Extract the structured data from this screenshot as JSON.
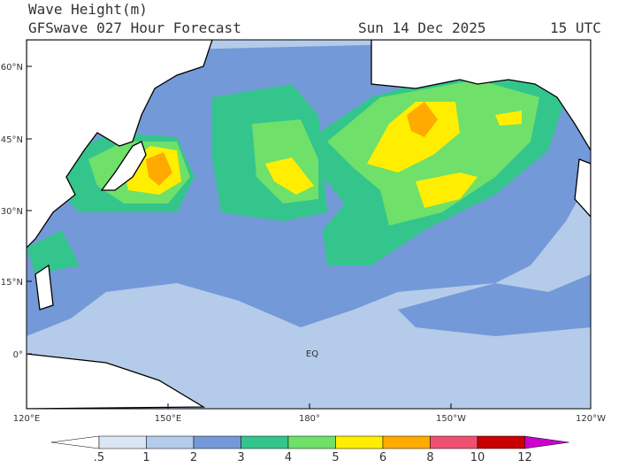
{
  "header": {
    "title": "Wave Height(m)",
    "subtitle": "GFSwave 027 Hour Forecast",
    "date": "Sun 14 Dec 2025",
    "time": "15 UTC"
  },
  "lat_labels": [
    "60°N",
    "45°N",
    "30°N",
    "15°N",
    "0°"
  ],
  "lon_labels": [
    "120°E",
    "150°E",
    "180°",
    "150°W",
    "120°W"
  ],
  "annotations": [
    "EQ"
  ],
  "colorbar": {
    "labels": [
      ".5",
      "1",
      "2",
      "3",
      "4",
      "5",
      "6",
      "8",
      "10",
      "12"
    ],
    "colors": [
      "#ffffff",
      "#dbe6f4",
      "#b4cbe9",
      "#7499d8",
      "#34c58c",
      "#6fe06a",
      "#ffee00",
      "#ffaa00",
      "#f05070",
      "#c80000",
      "#cc00cc"
    ]
  }
}
